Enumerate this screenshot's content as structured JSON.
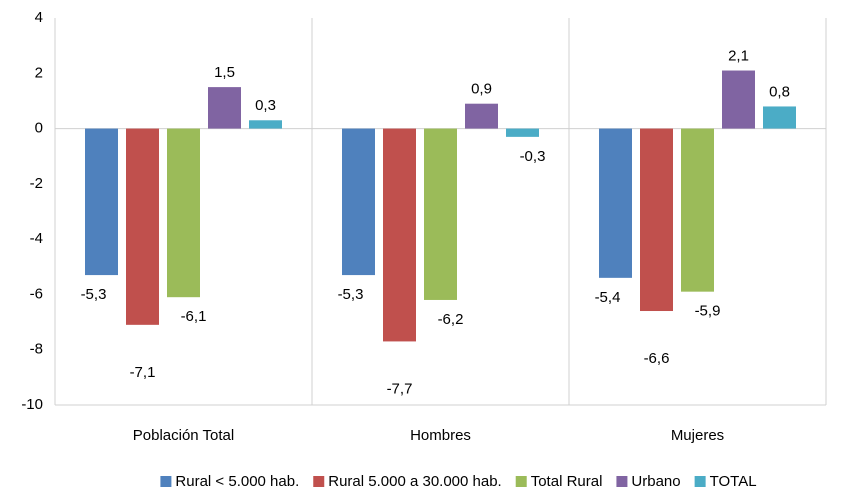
{
  "chart_data": {
    "type": "bar",
    "categories": [
      "Población Total",
      "Hombres",
      "Mujeres"
    ],
    "series": [
      {
        "name": "Rural < 5.000 hab.",
        "color": "#4f81bd",
        "values": [
          -5.3,
          -5.3,
          -5.4
        ],
        "value_labels": [
          "-5,3",
          "-5,3",
          "-5,4"
        ]
      },
      {
        "name": "Rural 5.000 a 30.000 hab.",
        "color": "#c0504d",
        "values": [
          -7.1,
          -7.7,
          -6.6
        ],
        "value_labels": [
          "-7,1",
          "-7,7",
          "-6,6"
        ]
      },
      {
        "name": "Total Rural",
        "color": "#9bbb59",
        "values": [
          -6.1,
          -6.2,
          -5.9
        ],
        "value_labels": [
          "-6,1",
          "-6,2",
          "-5,9"
        ]
      },
      {
        "name": "Urbano",
        "color": "#8064a2",
        "values": [
          1.5,
          0.9,
          2.1
        ],
        "value_labels": [
          "1,5",
          "0,9",
          "2,1"
        ]
      },
      {
        "name": "TOTAL",
        "color": "#4bacc6",
        "values": [
          0.3,
          -0.3,
          0.8
        ],
        "value_labels": [
          "0,3",
          "-0,3",
          "0,8"
        ]
      }
    ],
    "ylim": [
      -10,
      4
    ],
    "yticks": [
      4,
      2,
      0,
      -2,
      -4,
      -6,
      -8,
      -10
    ],
    "legend": "bottom"
  }
}
